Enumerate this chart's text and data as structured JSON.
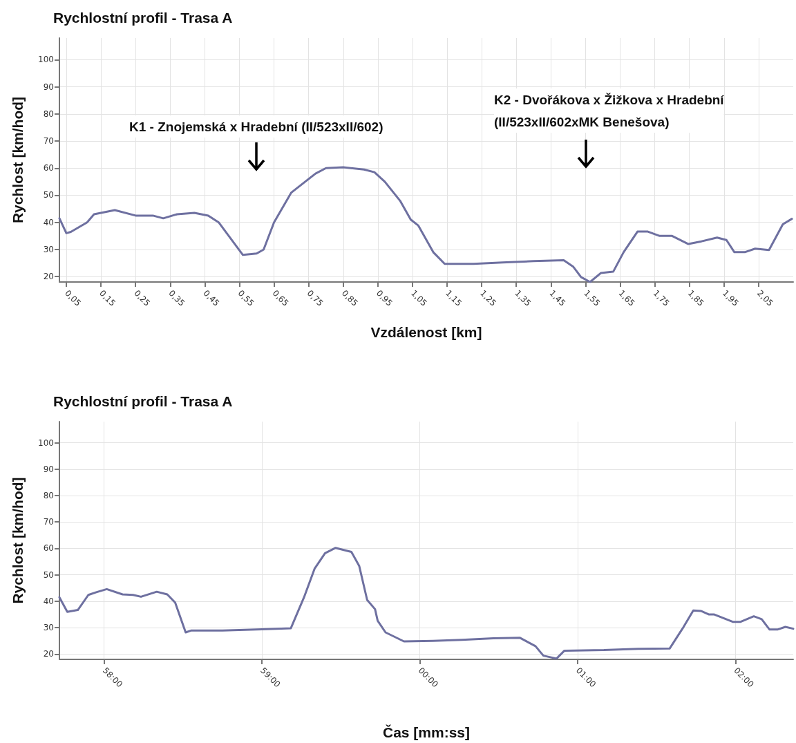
{
  "chart_data": [
    {
      "type": "line",
      "title": "Rychlostní profil - Trasa A",
      "xlabel": "Vzdálenost [km]",
      "ylabel": "Rychlost [km/hod]",
      "grid": true,
      "marker": "none",
      "line_style": "solid",
      "xlim": [
        0.03,
        2.15
      ],
      "ylim": [
        18,
        108
      ],
      "yticks": [
        20,
        30,
        40,
        50,
        60,
        70,
        80,
        90,
        100
      ],
      "xticks": [
        {
          "value": 0.05,
          "label": "0,05"
        },
        {
          "value": 0.15,
          "label": "0,15"
        },
        {
          "value": 0.25,
          "label": "0,25"
        },
        {
          "value": 0.35,
          "label": "0,35"
        },
        {
          "value": 0.45,
          "label": "0,45"
        },
        {
          "value": 0.55,
          "label": "0,55"
        },
        {
          "value": 0.65,
          "label": "0,65"
        },
        {
          "value": 0.75,
          "label": "0,75"
        },
        {
          "value": 0.85,
          "label": "0,85"
        },
        {
          "value": 0.95,
          "label": "0,95"
        },
        {
          "value": 1.05,
          "label": "1,05"
        },
        {
          "value": 1.15,
          "label": "1,15"
        },
        {
          "value": 1.25,
          "label": "1,25"
        },
        {
          "value": 1.35,
          "label": "1,35"
        },
        {
          "value": 1.45,
          "label": "1,45"
        },
        {
          "value": 1.55,
          "label": "1,55"
        },
        {
          "value": 1.65,
          "label": "1,65"
        },
        {
          "value": 1.75,
          "label": "1,75"
        },
        {
          "value": 1.85,
          "label": "1,85"
        },
        {
          "value": 1.95,
          "label": "1,95"
        },
        {
          "value": 2.05,
          "label": "2,05"
        }
      ],
      "annotations": [
        "K1 - Znojemská x Hradební (II/523xII/602)",
        "K2 - Dvořákova x Žižkova x Hradební\n(II/523xII/602xMK Benešova)"
      ],
      "series": [
        {
          "color": "#6e70a0",
          "x": [
            0.03,
            0.05,
            0.063,
            0.11,
            0.13,
            0.19,
            0.25,
            0.3,
            0.33,
            0.37,
            0.42,
            0.46,
            0.49,
            0.56,
            0.6,
            0.62,
            0.65,
            0.7,
            0.74,
            0.77,
            0.8,
            0.85,
            0.91,
            0.94,
            0.97,
            1.014,
            1.045,
            1.067,
            1.11,
            1.143,
            1.226,
            1.31,
            1.4,
            1.487,
            1.514,
            1.537,
            1.563,
            1.594,
            1.63,
            1.66,
            1.7,
            1.73,
            1.764,
            1.8,
            1.847,
            1.885,
            1.93,
            1.957,
            1.98,
            2.01,
            2.04,
            2.08,
            2.12,
            2.146
          ],
          "values": [
            41.5,
            36,
            36.5,
            40,
            43,
            44.5,
            42.5,
            42.5,
            41.5,
            43,
            43.5,
            42.5,
            40,
            28,
            28.5,
            30,
            40,
            51,
            55,
            58,
            60,
            60.3,
            59.5,
            58.5,
            55,
            48,
            41,
            38.8,
            29,
            24.7,
            24.7,
            25.2,
            25.7,
            26,
            23.7,
            19.8,
            18,
            21.3,
            21.8,
            29,
            36.6,
            36.6,
            35,
            35,
            32,
            33,
            34.4,
            33.5,
            29,
            29,
            30.3,
            29.8,
            39.3,
            41.3
          ]
        }
      ]
    },
    {
      "type": "line",
      "title": "Rychlostní profil - Trasa A",
      "xlabel": "Čas [mm:ss]",
      "ylabel": "Rychlost [km/hod]",
      "grid": true,
      "marker": "none",
      "line_style": "solid",
      "xlim": [
        "--01-01T00:57:43",
        "--01-01T01:02:22"
      ],
      "ylim": [
        18,
        108
      ],
      "yticks": [
        20,
        30,
        40,
        50,
        60,
        70,
        80,
        90,
        100
      ],
      "xticks": [
        {
          "value": "--01-01T00:58:00",
          "label": "58:00"
        },
        {
          "value": "--01-01T00:59:00",
          "label": "59:00"
        },
        {
          "value": "--01-01T01:00:00",
          "label": "00:00"
        },
        {
          "value": "--01-01T01:01:00",
          "label": "01:00"
        },
        {
          "value": "--01-01T01:02:00",
          "label": "02:00"
        }
      ],
      "series": [
        {
          "color": "#6e70a0",
          "x": [
            "--01-01T00:57:43",
            "--01-01T00:57:46",
            "--01-01T00:57:50",
            "--01-01T00:57:54",
            "--01-01T00:57:57",
            "--01-01T00:58:01",
            "--01-01T00:58:07",
            "--01-01T00:58:11",
            "--01-01T00:58:14",
            "--01-01T00:58:20",
            "--01-01T00:58:24",
            "--01-01T00:58:27",
            "--01-01T00:58:31",
            "--01-01T00:58:33",
            "--01-01T00:58:45",
            "--01-01T00:59:00",
            "--01-01T00:59:11",
            "--01-01T00:59:16",
            "--01-01T00:59:20",
            "--01-01T00:59:24",
            "--01-01T00:59:28",
            "--01-01T00:59:34",
            "--01-01T00:59:37",
            "--01-01T00:59:40",
            "--01-01T00:59:43",
            "--01-01T00:59:44",
            "--01-01T00:59:47",
            "--01-01T00:59:54",
            "--01-01T01:00:05",
            "--01-01T01:00:16",
            "--01-01T01:00:28",
            "--01-01T01:00:38",
            "--01-01T01:00:44",
            "--01-01T01:00:47",
            "--01-01T01:00:52",
            "--01-01T01:00:55",
            "--01-01T01:01:10",
            "--01-01T01:01:23",
            "--01-01T01:01:35",
            "--01-01T01:01:40",
            "--01-01T01:01:44",
            "--01-01T01:01:47",
            "--01-01T01:01:50",
            "--01-01T01:01:52",
            "--01-01T01:01:59",
            "--01-01T01:02:02",
            "--01-01T01:02:07",
            "--01-01T01:02:10",
            "--01-01T01:02:13",
            "--01-01T01:02:16",
            "--01-01T01:02:19",
            "--01-01T01:02:22"
          ],
          "values": [
            41.5,
            36,
            36.7,
            42.4,
            43.4,
            44.6,
            42.6,
            42.4,
            41.7,
            43.6,
            42.6,
            39.5,
            28.2,
            28.9,
            28.9,
            29.4,
            29.8,
            41.5,
            52.3,
            58.2,
            60.2,
            58.7,
            53.3,
            40.5,
            37,
            32.6,
            28.2,
            24.8,
            25,
            25.4,
            26,
            26.2,
            23,
            19.4,
            18.3,
            21.3,
            21.5,
            22,
            22.1,
            29.8,
            36.5,
            36.3,
            35,
            35,
            32.2,
            32.2,
            34.3,
            33.2,
            29.3,
            29.3,
            30.3,
            29.6
          ]
        }
      ]
    }
  ]
}
